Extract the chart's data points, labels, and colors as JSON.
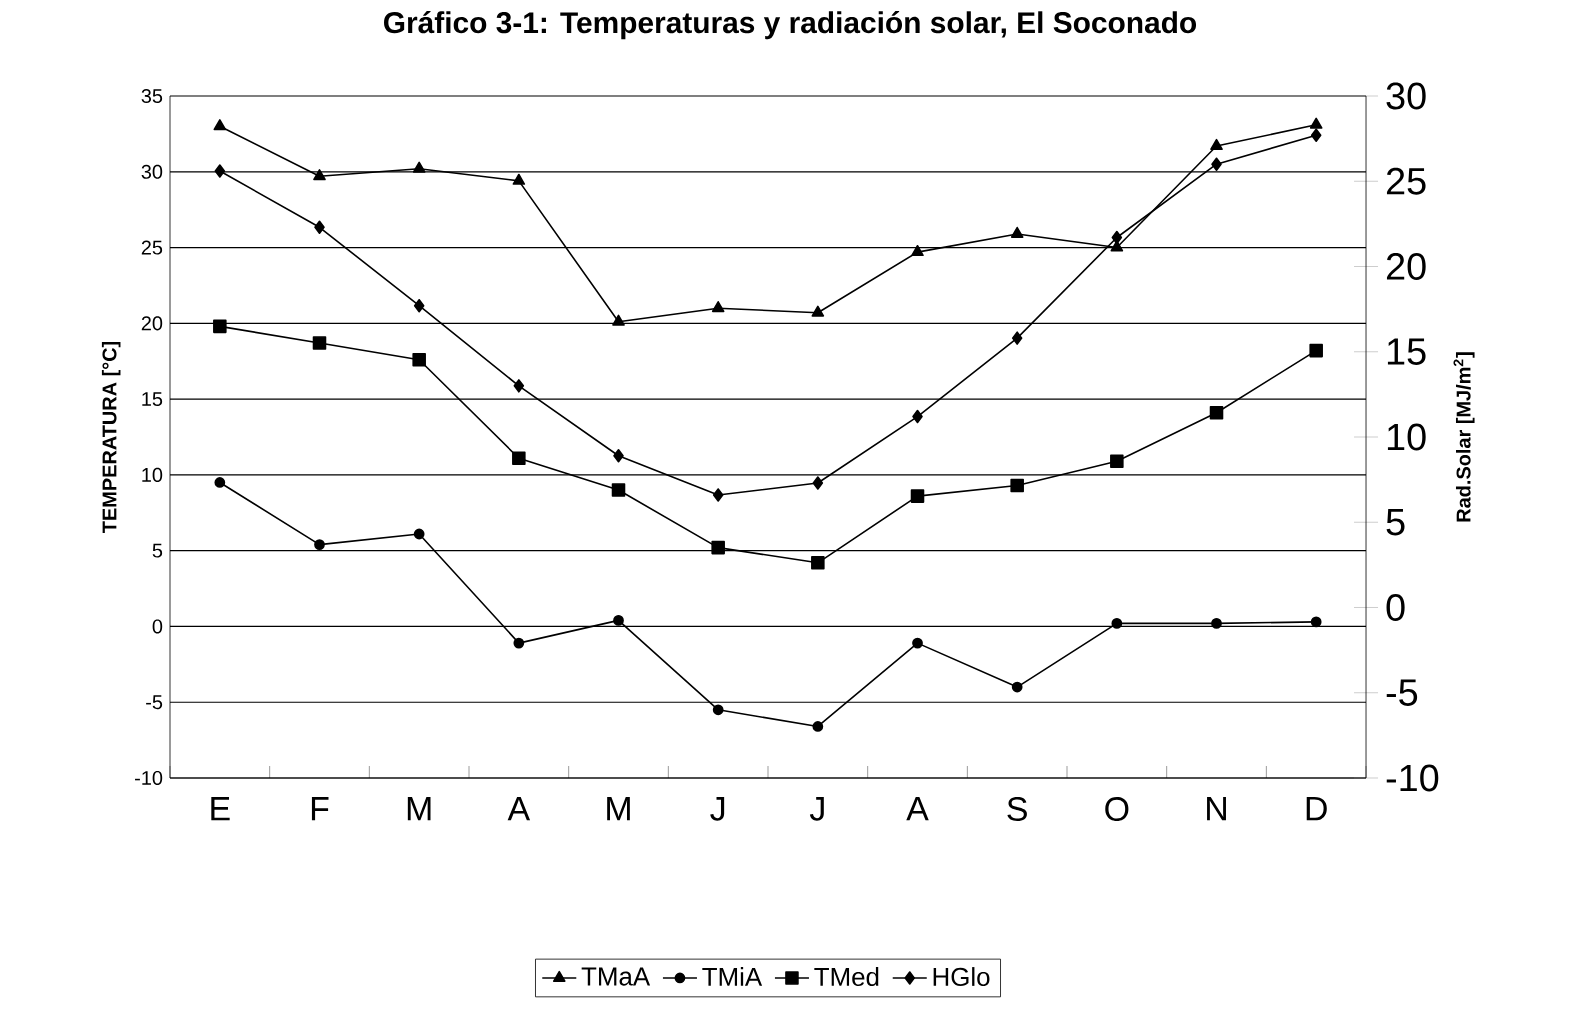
{
  "chart_data": {
    "type": "line",
    "title": "Gráfico 3-1: Temperaturas y radiación solar, El Soconado",
    "categories": [
      "E",
      "F",
      "M",
      "A",
      "M",
      "J",
      "J",
      "A",
      "S",
      "O",
      "N",
      "D"
    ],
    "ylabel": "TEMPERATURA [°C]",
    "y2label": "Rad.Solar [MJ/m$^{2}$]",
    "ylim": [
      -10,
      35
    ],
    "yticks": [
      -10,
      -5,
      0,
      5,
      10,
      15,
      20,
      25,
      30,
      35
    ],
    "y2lim": [
      -10,
      30
    ],
    "y2ticks": [
      -10,
      -5,
      0,
      5,
      10,
      15,
      20,
      25,
      30
    ],
    "grid": "y",
    "legend": "bottom",
    "line_style": "solid",
    "series": [
      {
        "name": "TMaA",
        "color": "#000000",
        "marker": "triangle",
        "values": [
          33.0,
          29.7,
          30.2,
          29.4,
          20.1,
          21.0,
          20.7,
          24.7,
          25.9,
          25.0,
          31.7,
          33.1
        ]
      },
      {
        "name": "TMiA",
        "color": "#000000",
        "marker": "circle",
        "values": [
          9.5,
          5.4,
          6.1,
          -1.1,
          0.4,
          -5.5,
          -6.6,
          -1.1,
          -4.0,
          0.2,
          0.2,
          0.3
        ]
      },
      {
        "name": "TMed",
        "color": "#000000",
        "marker": "square",
        "values": [
          19.8,
          18.7,
          17.6,
          11.1,
          9.0,
          5.2,
          4.2,
          8.6,
          9.3,
          10.9,
          14.1,
          18.2
        ]
      },
      {
        "name": "HGlo",
        "color": "#000000",
        "marker": "diamond",
        "axis": "y2",
        "values": [
          25.6,
          22.3,
          17.7,
          13.0,
          8.9,
          6.6,
          7.3,
          11.2,
          15.8,
          21.7,
          26.0,
          27.7
        ]
      }
    ]
  }
}
